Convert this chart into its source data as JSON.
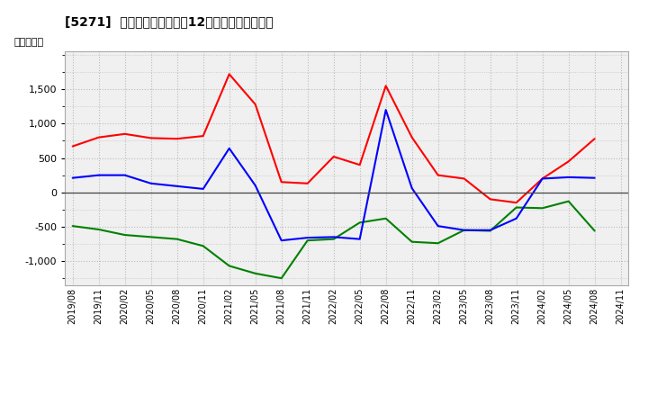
{
  "title": "[5271]  キャッシュフローの12か月移動合計の推移",
  "ylabel": "（百万円）",
  "x_labels": [
    "2019/08",
    "2019/11",
    "2020/02",
    "2020/05",
    "2020/08",
    "2020/11",
    "2021/02",
    "2021/05",
    "2021/08",
    "2021/11",
    "2022/02",
    "2022/05",
    "2022/08",
    "2022/11",
    "2023/02",
    "2023/05",
    "2023/08",
    "2023/11",
    "2024/02",
    "2024/05",
    "2024/08",
    "2024/11"
  ],
  "eigyo_cf": [
    670,
    800,
    850,
    790,
    780,
    820,
    1720,
    1280,
    150,
    130,
    520,
    400,
    1550,
    800,
    250,
    200,
    -100,
    -150,
    200,
    450,
    780,
    null
  ],
  "toshi_cf": [
    -490,
    -540,
    -620,
    -650,
    -680,
    -780,
    -1070,
    -1180,
    -1250,
    -700,
    -680,
    -440,
    -380,
    -720,
    -740,
    -550,
    -560,
    -220,
    -230,
    -130,
    -560,
    null
  ],
  "free_cf": [
    210,
    250,
    250,
    130,
    90,
    50,
    640,
    100,
    -700,
    -660,
    -650,
    -680,
    1200,
    60,
    -490,
    -550,
    -550,
    -380,
    200,
    220,
    210,
    null
  ],
  "eigyo_color": "#ff0000",
  "toshi_color": "#008000",
  "free_color": "#0000ff",
  "ylim_min": -1350,
  "ylim_max": 2050,
  "yticks": [
    -1000,
    -500,
    0,
    500,
    1000,
    1500
  ],
  "background_color": "#ffffff",
  "grid_color": "#bbbbbb",
  "plot_bg_color": "#f0f0f0"
}
